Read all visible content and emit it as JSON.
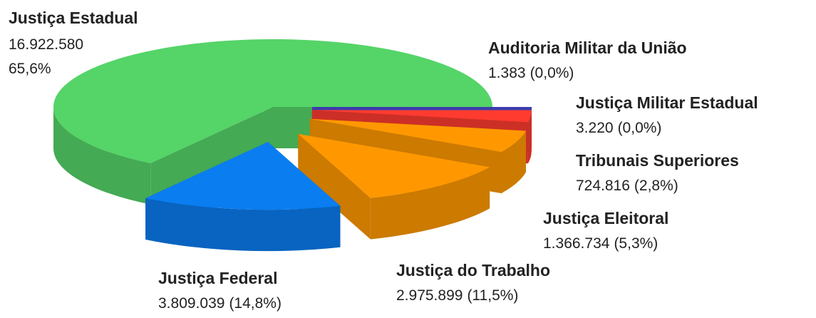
{
  "chart_data": {
    "type": "pie3d",
    "categories": [
      "Auditoria Militar da União",
      "Justiça Militar Estadual",
      "Tribunais Superiores",
      "Justiça Eleitoral",
      "Justiça do Trabalho",
      "Justiça Federal",
      "Justiça Estadual"
    ],
    "values": [
      1383,
      3220,
      724816,
      1366734,
      2975899,
      3809039,
      16922580
    ],
    "value_labels": [
      "1.383",
      "3.220",
      "724.816",
      "1.366.734",
      "2.975.899",
      "3.809.039",
      "16.922.580"
    ],
    "percents": [
      0.0,
      0.0,
      2.8,
      5.3,
      11.5,
      14.8,
      65.6
    ],
    "percent_labels": [
      "(0,0%)",
      "(0,0%)",
      "(2,8%)",
      "(5,3%)",
      "(11,5%)",
      "(14,8%)",
      "65,6%"
    ],
    "colors": [
      "#5a5ae0",
      "#4b4bd6",
      "#ff3b30",
      "#ff9800",
      "#ff9800",
      "#0a7df0",
      "#55d468"
    ]
  }
}
